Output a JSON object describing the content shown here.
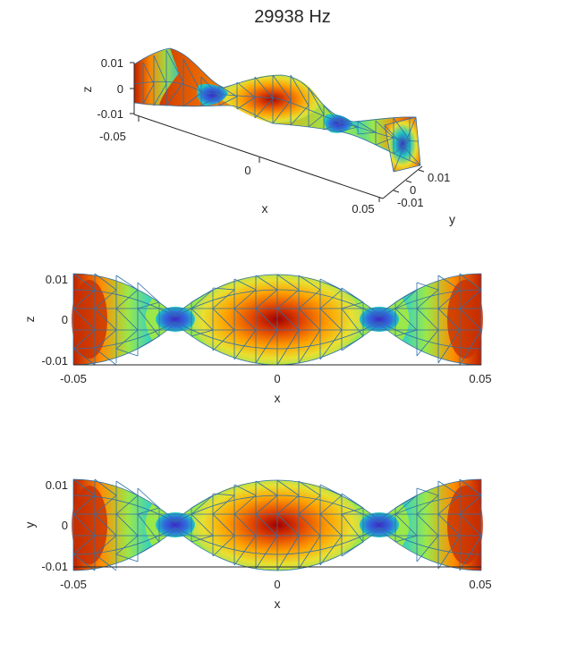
{
  "figure": {
    "title": "29938 Hz"
  },
  "colormap": {
    "name": "jet",
    "stops": [
      "#8b0000",
      "#e03000",
      "#ff8c00",
      "#f5d020",
      "#9be84a",
      "#22c8c0",
      "#2f6fdc",
      "#3b2bc2"
    ]
  },
  "plots": {
    "iso": {
      "zlabel": "z",
      "xlabel": "x",
      "ylabel": "y",
      "zticks": [
        "0.01",
        "0",
        "-0.01"
      ],
      "xticks": [
        "-0.05",
        "0",
        "0.05"
      ],
      "yticks": [
        "0.01",
        "0",
        "-0.01"
      ]
    },
    "xz": {
      "xlabel": "x",
      "ylabel": "z",
      "xticks": [
        "-0.05",
        "0",
        "0.05"
      ],
      "yticks": [
        "0.01",
        "0",
        "-0.01"
      ]
    },
    "xy": {
      "xlabel": "x",
      "ylabel": "y",
      "xticks": [
        "-0.05",
        "0",
        "0.05"
      ],
      "yticks": [
        "0.01",
        "0",
        "-0.01"
      ]
    }
  }
}
